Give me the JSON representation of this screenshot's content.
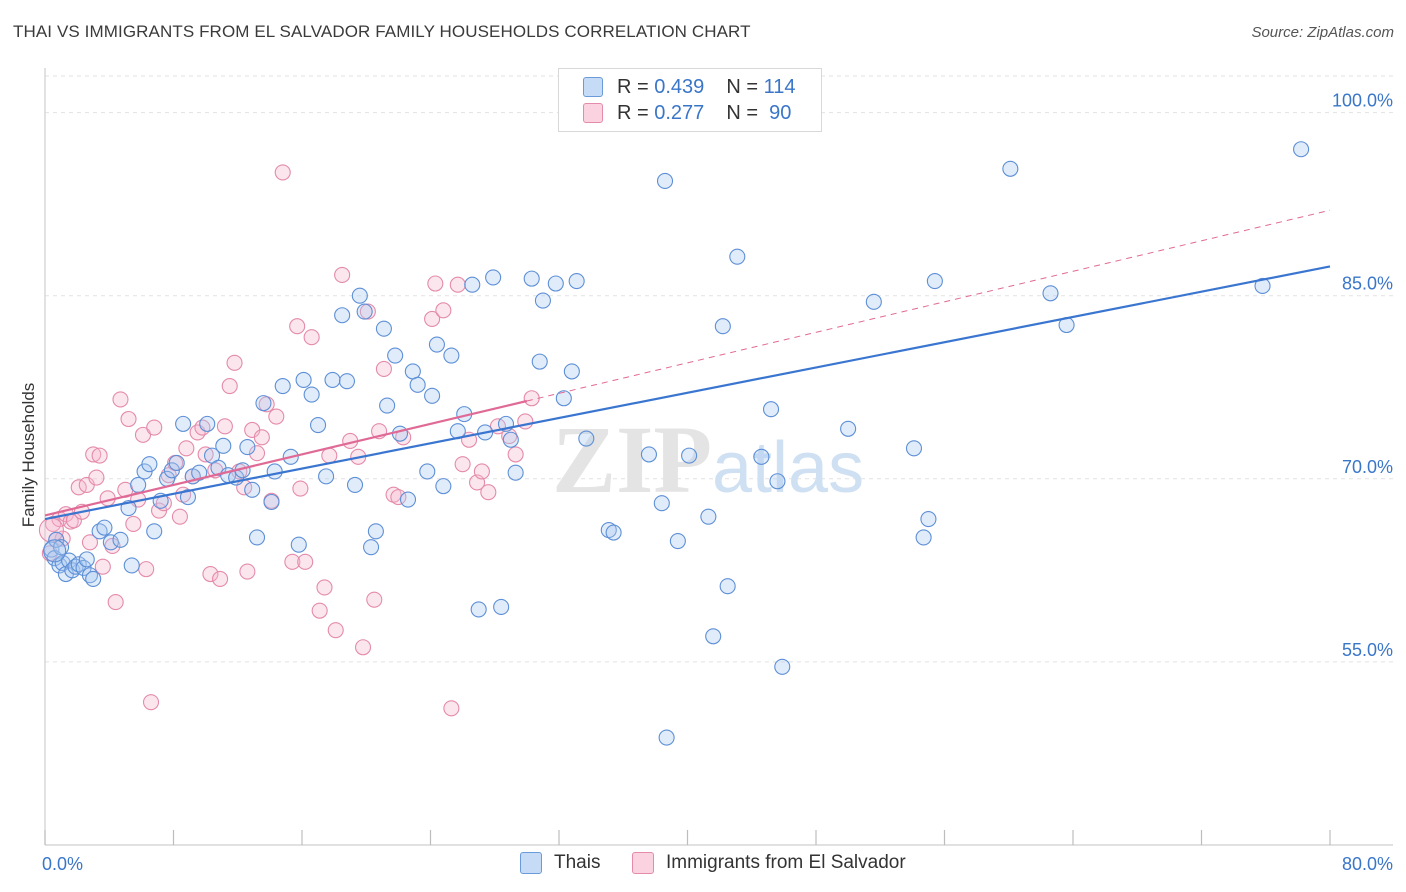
{
  "title": "THAI VS IMMIGRANTS FROM EL SALVADOR FAMILY HOUSEHOLDS CORRELATION CHART",
  "source": "Source: ZipAtlas.com",
  "watermark": {
    "zip": "ZIP",
    "atlas": "atlas"
  },
  "legend": {
    "rows": [
      {
        "r_label": "R =",
        "r_value": "0.439",
        "n_label": "N =",
        "n_value": "114",
        "color": "#a9c8f0",
        "border": "#6a9ad8"
      },
      {
        "r_label": "R =",
        "r_value": "0.277",
        "n_label": "N =",
        "n_value": "90",
        "color": "#f6bfd2",
        "border": "#e48aaa"
      }
    ]
  },
  "bottom_legend": [
    {
      "label": "Thais",
      "color": "#a9c8f0",
      "border": "#6a9ad8"
    },
    {
      "label": "Immigrants from El Salvador",
      "color": "#f6bfd2",
      "border": "#e48aaa"
    }
  ],
  "chart_data": {
    "type": "scatter",
    "title": "THAI VS IMMIGRANTS FROM EL SALVADOR FAMILY HOUSEHOLDS CORRELATION CHART",
    "xlabel": "",
    "ylabel": "Family Households",
    "xlim": [
      0,
      80
    ],
    "ylim": [
      40,
      103
    ],
    "x_tick_labels": [
      "0.0%",
      "80.0%"
    ],
    "y_ticks": [
      55,
      70,
      85,
      100
    ],
    "y_tick_labels": [
      "55.0%",
      "70.0%",
      "85.0%",
      "100.0%"
    ],
    "grid": true,
    "colors": {
      "thais": "#3a76d0",
      "elsalvador": "#e06a96",
      "tick_label": "#3a76c8"
    },
    "series": [
      {
        "name": "Thais",
        "points": [
          [
            0.4,
            64.2
          ],
          [
            0.6,
            63.5
          ],
          [
            0.7,
            65.0
          ],
          [
            0.9,
            62.9
          ],
          [
            1.0,
            64.4
          ],
          [
            1.1,
            63.1
          ],
          [
            1.3,
            62.2
          ],
          [
            1.5,
            63.3
          ],
          [
            1.7,
            62.5
          ],
          [
            1.9,
            62.8
          ],
          [
            2.1,
            63.0
          ],
          [
            2.4,
            62.7
          ],
          [
            2.6,
            63.4
          ],
          [
            2.8,
            62.1
          ],
          [
            3.0,
            61.8
          ],
          [
            3.4,
            65.7
          ],
          [
            3.7,
            66.0
          ],
          [
            4.1,
            64.8
          ],
          [
            4.7,
            65.0
          ],
          [
            5.2,
            67.6
          ],
          [
            5.4,
            62.9
          ],
          [
            5.8,
            69.5
          ],
          [
            6.2,
            70.6
          ],
          [
            6.5,
            71.2
          ],
          [
            6.8,
            65.7
          ],
          [
            7.2,
            68.2
          ],
          [
            7.6,
            70.0
          ],
          [
            7.9,
            70.7
          ],
          [
            8.2,
            71.3
          ],
          [
            8.6,
            74.5
          ],
          [
            8.9,
            68.5
          ],
          [
            9.2,
            70.2
          ],
          [
            9.6,
            70.5
          ],
          [
            10.1,
            74.5
          ],
          [
            10.4,
            71.9
          ],
          [
            10.8,
            70.9
          ],
          [
            11.1,
            72.7
          ],
          [
            11.4,
            70.3
          ],
          [
            11.9,
            70.1
          ],
          [
            12.3,
            70.7
          ],
          [
            12.6,
            72.6
          ],
          [
            12.9,
            69.1
          ],
          [
            13.2,
            65.2
          ],
          [
            13.6,
            76.2
          ],
          [
            14.1,
            68.1
          ],
          [
            14.3,
            70.6
          ],
          [
            14.8,
            77.6
          ],
          [
            15.3,
            71.8
          ],
          [
            15.8,
            64.6
          ],
          [
            16.1,
            78.1
          ],
          [
            16.6,
            76.9
          ],
          [
            17.0,
            74.4
          ],
          [
            17.5,
            70.2
          ],
          [
            17.9,
            78.1
          ],
          [
            18.5,
            83.4
          ],
          [
            18.8,
            78.0
          ],
          [
            19.3,
            69.5
          ],
          [
            19.6,
            85.0
          ],
          [
            19.9,
            83.7
          ],
          [
            20.3,
            64.4
          ],
          [
            20.6,
            65.7
          ],
          [
            21.1,
            82.3
          ],
          [
            21.3,
            76.0
          ],
          [
            21.8,
            80.1
          ],
          [
            22.1,
            73.7
          ],
          [
            22.6,
            68.3
          ],
          [
            22.9,
            78.8
          ],
          [
            23.2,
            77.7
          ],
          [
            23.8,
            70.6
          ],
          [
            24.1,
            76.8
          ],
          [
            24.4,
            81.0
          ],
          [
            24.8,
            69.4
          ],
          [
            25.3,
            80.1
          ],
          [
            25.7,
            73.9
          ],
          [
            26.1,
            75.3
          ],
          [
            26.6,
            85.9
          ],
          [
            27.0,
            59.3
          ],
          [
            27.4,
            73.8
          ],
          [
            27.9,
            86.5
          ],
          [
            28.4,
            59.5
          ],
          [
            28.7,
            74.5
          ],
          [
            29.0,
            73.2
          ],
          [
            29.3,
            70.5
          ],
          [
            30.3,
            86.4
          ],
          [
            30.8,
            79.6
          ],
          [
            31.0,
            84.6
          ],
          [
            31.8,
            86.0
          ],
          [
            32.3,
            76.6
          ],
          [
            32.8,
            78.8
          ],
          [
            33.1,
            86.2
          ],
          [
            33.7,
            73.3
          ],
          [
            35.1,
            65.8
          ],
          [
            35.4,
            65.6
          ],
          [
            37.6,
            72.0
          ],
          [
            38.4,
            68.0
          ],
          [
            38.6,
            94.4
          ],
          [
            38.7,
            48.8
          ],
          [
            39.4,
            64.9
          ],
          [
            40.1,
            71.9
          ],
          [
            41.3,
            66.9
          ],
          [
            41.6,
            57.1
          ],
          [
            42.2,
            82.5
          ],
          [
            42.5,
            61.2
          ],
          [
            43.1,
            88.2
          ],
          [
            44.6,
            71.8
          ],
          [
            45.2,
            75.7
          ],
          [
            45.6,
            69.8
          ],
          [
            45.9,
            54.6
          ],
          [
            50.0,
            74.1
          ],
          [
            51.6,
            84.5
          ],
          [
            54.1,
            72.5
          ],
          [
            54.7,
            65.2
          ],
          [
            55.0,
            66.7
          ],
          [
            55.4,
            86.2
          ],
          [
            60.1,
            95.4
          ],
          [
            62.6,
            85.2
          ],
          [
            63.6,
            82.6
          ],
          [
            75.8,
            85.8
          ],
          [
            78.2,
            97.0
          ]
        ]
      },
      {
        "name": "Immigrants from El Salvador",
        "points": [
          [
            0.3,
            63.9
          ],
          [
            0.5,
            66.3
          ],
          [
            0.7,
            65.0
          ],
          [
            0.9,
            66.7
          ],
          [
            1.1,
            65.1
          ],
          [
            1.3,
            67.1
          ],
          [
            1.6,
            66.5
          ],
          [
            1.8,
            66.6
          ],
          [
            2.1,
            69.3
          ],
          [
            2.3,
            67.3
          ],
          [
            2.6,
            69.5
          ],
          [
            2.8,
            64.8
          ],
          [
            3.0,
            72.0
          ],
          [
            3.2,
            70.1
          ],
          [
            3.4,
            71.9
          ],
          [
            3.6,
            62.8
          ],
          [
            3.9,
            68.4
          ],
          [
            4.2,
            64.5
          ],
          [
            4.4,
            59.9
          ],
          [
            4.7,
            76.5
          ],
          [
            5.0,
            69.1
          ],
          [
            5.2,
            74.9
          ],
          [
            5.5,
            66.3
          ],
          [
            5.8,
            68.3
          ],
          [
            6.1,
            73.6
          ],
          [
            6.3,
            62.6
          ],
          [
            6.6,
            51.7
          ],
          [
            6.8,
            74.2
          ],
          [
            7.1,
            67.4
          ],
          [
            7.4,
            68.0
          ],
          [
            7.7,
            70.3
          ],
          [
            8.1,
            71.3
          ],
          [
            8.4,
            66.9
          ],
          [
            8.6,
            68.7
          ],
          [
            8.8,
            72.5
          ],
          [
            9.2,
            70.2
          ],
          [
            9.5,
            73.8
          ],
          [
            9.8,
            74.2
          ],
          [
            10.0,
            72.0
          ],
          [
            10.3,
            62.2
          ],
          [
            10.6,
            70.7
          ],
          [
            10.9,
            61.8
          ],
          [
            11.2,
            74.3
          ],
          [
            11.5,
            77.6
          ],
          [
            11.8,
            79.5
          ],
          [
            12.1,
            70.6
          ],
          [
            12.4,
            69.3
          ],
          [
            12.6,
            62.4
          ],
          [
            12.9,
            74.0
          ],
          [
            13.2,
            72.1
          ],
          [
            13.5,
            73.4
          ],
          [
            13.8,
            76.1
          ],
          [
            14.1,
            68.2
          ],
          [
            14.4,
            75.1
          ],
          [
            14.8,
            95.1
          ],
          [
            15.4,
            63.2
          ],
          [
            15.7,
            82.5
          ],
          [
            15.9,
            69.2
          ],
          [
            16.2,
            63.2
          ],
          [
            16.6,
            81.6
          ],
          [
            17.1,
            59.2
          ],
          [
            17.4,
            61.1
          ],
          [
            17.7,
            71.9
          ],
          [
            18.1,
            57.6
          ],
          [
            18.5,
            86.7
          ],
          [
            19.0,
            73.1
          ],
          [
            19.5,
            71.8
          ],
          [
            19.8,
            56.2
          ],
          [
            20.1,
            83.7
          ],
          [
            20.5,
            60.1
          ],
          [
            20.8,
            73.9
          ],
          [
            21.1,
            79.0
          ],
          [
            21.7,
            68.7
          ],
          [
            22.0,
            68.5
          ],
          [
            22.3,
            73.4
          ],
          [
            24.1,
            83.1
          ],
          [
            24.3,
            86.0
          ],
          [
            24.8,
            83.8
          ],
          [
            25.3,
            51.2
          ],
          [
            25.7,
            85.9
          ],
          [
            26.0,
            71.2
          ],
          [
            26.4,
            73.2
          ],
          [
            26.9,
            69.7
          ],
          [
            27.2,
            70.6
          ],
          [
            27.6,
            68.9
          ],
          [
            28.2,
            74.3
          ],
          [
            28.9,
            73.5
          ],
          [
            29.3,
            72.0
          ],
          [
            29.9,
            74.7
          ],
          [
            30.3,
            76.6
          ]
        ]
      }
    ],
    "trendlines": [
      {
        "name": "Thais",
        "x": [
          0,
          80
        ],
        "y": [
          66.7,
          87.4
        ]
      },
      {
        "name": "Immigrants from El Salvador",
        "x": [
          0,
          80
        ],
        "y": [
          67.0,
          92.0
        ],
        "solid_until_x": 30
      }
    ]
  }
}
